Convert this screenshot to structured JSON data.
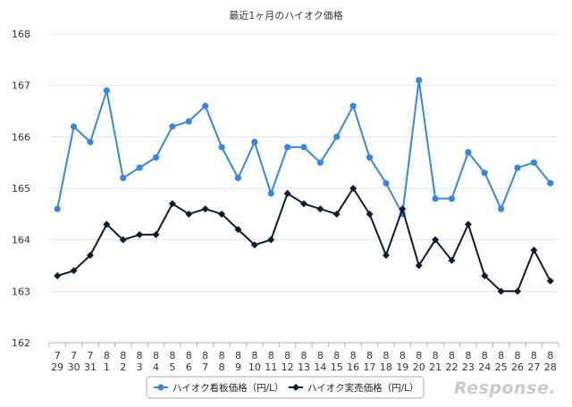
{
  "chart_data": {
    "type": "line",
    "title": "最近1ヶ月のハイオク価格",
    "xlabel": "",
    "ylabel": "",
    "ylim": [
      162,
      168
    ],
    "yticks": [
      "162",
      "163",
      "164",
      "165",
      "166",
      "167",
      "168"
    ],
    "grid": true,
    "legend_position": "bottom-center",
    "x_months": [
      "7",
      "7",
      "7",
      "8",
      "8",
      "8",
      "8",
      "8",
      "8",
      "8",
      "8",
      "8",
      "8",
      "8",
      "8",
      "8",
      "8",
      "8",
      "8",
      "8",
      "8",
      "8",
      "8",
      "8",
      "8",
      "8",
      "8",
      "8",
      "8",
      "8",
      "8"
    ],
    "x_days": [
      "29",
      "30",
      "31",
      "1",
      "2",
      "3",
      "4",
      "5",
      "6",
      "7",
      "8",
      "9",
      "10",
      "11",
      "12",
      "13",
      "14",
      "15",
      "16",
      "17",
      "18",
      "19",
      "20",
      "21",
      "22",
      "23",
      "24",
      "25",
      "26",
      "27",
      "28"
    ],
    "series": [
      {
        "name": "ハイオク看板価格（円/L）",
        "color": "#3a86d6",
        "marker": "circle",
        "values": [
          164.6,
          166.2,
          165.9,
          166.9,
          165.2,
          165.4,
          165.6,
          166.2,
          166.3,
          166.6,
          165.8,
          165.2,
          165.9,
          164.9,
          165.8,
          165.8,
          165.5,
          166.0,
          166.6,
          165.6,
          165.1,
          164.5,
          167.1,
          164.8,
          164.8,
          165.7,
          165.3,
          164.6,
          165.4,
          165.5,
          165.1
        ]
      },
      {
        "name": "ハイオク実売価格（円/L）",
        "color": "#0d1b2e",
        "marker": "diamond",
        "values": [
          163.3,
          163.4,
          163.7,
          164.3,
          164.0,
          164.1,
          164.1,
          164.7,
          164.5,
          164.6,
          164.5,
          164.2,
          163.9,
          164.0,
          164.9,
          164.7,
          164.6,
          164.5,
          165.0,
          164.5,
          163.7,
          164.6,
          163.5,
          164.0,
          163.6,
          164.3,
          163.3,
          163.0,
          163.0,
          163.8,
          163.2
        ]
      }
    ]
  },
  "watermark": "Response."
}
